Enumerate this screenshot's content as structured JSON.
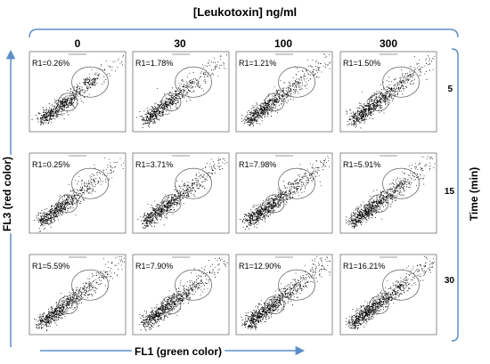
{
  "figure": {
    "concentration_label": "[Leukotoxin] ng/ml",
    "x_axis_label": "FL1 (green color)",
    "y_axis_label": "FL3 (red color)",
    "time_label": "Time  (min)",
    "region_labels": [
      "R1",
      "R2"
    ],
    "colors": {
      "axis_bracket": "#5b8fc7",
      "dots": "#000000",
      "gate": "#555555"
    }
  },
  "chart_data": {
    "type": "scatter",
    "columns": [
      "0",
      "30",
      "100",
      "300"
    ],
    "rows": [
      "5",
      "15",
      "30"
    ],
    "r1_percent": [
      [
        "R1=0.26%",
        "R1=1.78%",
        "R1=1.21%",
        "R1=1.50%"
      ],
      [
        "R1=0.25%",
        "R1=3.71%",
        "R1=7.98%",
        "R1=5.91%"
      ],
      [
        "R1=5.59%",
        "R1=7.90%",
        "R1=12.90%",
        "R1=16.21%"
      ]
    ]
  }
}
